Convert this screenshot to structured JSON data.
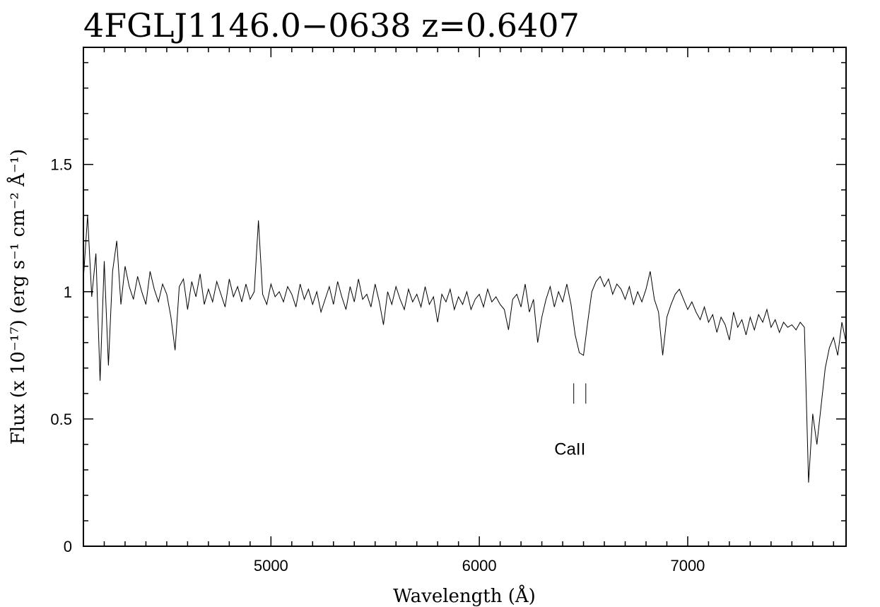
{
  "chart_data": {
    "type": "line",
    "title": "4FGLJ1146.0−0638 z=0.6407",
    "xlabel": "Wavelength (Å)",
    "ylabel": "Flux (x 10⁻¹⁷) (erg s⁻¹ cm⁻² Å⁻¹)",
    "color": "#000000",
    "xlim": [
      4100,
      7760
    ],
    "ylim": [
      0,
      1.96
    ],
    "xticks": [
      5000,
      6000,
      7000
    ],
    "yticks": [
      0,
      0.5,
      1,
      1.5
    ],
    "xminorticks": [
      4200,
      4300,
      4400,
      4500,
      4600,
      4700,
      4800,
      4900,
      5100,
      5200,
      5300,
      5400,
      5500,
      5600,
      5700,
      5800,
      5900,
      6100,
      6200,
      6300,
      6400,
      6500,
      6600,
      6700,
      6800,
      6900,
      7100,
      7200,
      7300,
      7400,
      7500,
      7600,
      7700
    ],
    "yminorticks": [
      0.1,
      0.2,
      0.3,
      0.4,
      0.6,
      0.7,
      0.8,
      0.9,
      1.1,
      1.2,
      1.3,
      1.4,
      1.6,
      1.7,
      1.8,
      1.9
    ],
    "x": [
      4100,
      4120,
      4140,
      4160,
      4180,
      4200,
      4220,
      4240,
      4260,
      4280,
      4300,
      4320,
      4340,
      4360,
      4380,
      4400,
      4420,
      4440,
      4460,
      4480,
      4500,
      4520,
      4540,
      4560,
      4580,
      4600,
      4620,
      4640,
      4660,
      4680,
      4700,
      4720,
      4740,
      4760,
      4780,
      4800,
      4820,
      4840,
      4860,
      4880,
      4900,
      4920,
      4940,
      4960,
      4980,
      5000,
      5020,
      5040,
      5060,
      5080,
      5100,
      5120,
      5140,
      5160,
      5180,
      5200,
      5220,
      5240,
      5260,
      5280,
      5300,
      5320,
      5340,
      5360,
      5380,
      5400,
      5420,
      5440,
      5460,
      5480,
      5500,
      5520,
      5540,
      5560,
      5580,
      5600,
      5620,
      5640,
      5660,
      5680,
      5700,
      5720,
      5740,
      5760,
      5780,
      5800,
      5820,
      5840,
      5860,
      5880,
      5900,
      5920,
      5940,
      5960,
      5980,
      6000,
      6020,
      6040,
      6060,
      6080,
      6100,
      6120,
      6140,
      6160,
      6180,
      6200,
      6220,
      6240,
      6260,
      6280,
      6300,
      6320,
      6340,
      6360,
      6380,
      6400,
      6420,
      6440,
      6460,
      6480,
      6500,
      6520,
      6540,
      6560,
      6580,
      6600,
      6620,
      6640,
      6660,
      6680,
      6700,
      6720,
      6740,
      6760,
      6780,
      6800,
      6820,
      6840,
      6860,
      6880,
      6900,
      6920,
      6940,
      6960,
      6980,
      7000,
      7020,
      7040,
      7060,
      7080,
      7100,
      7120,
      7140,
      7160,
      7180,
      7200,
      7220,
      7240,
      7260,
      7280,
      7300,
      7320,
      7340,
      7360,
      7380,
      7400,
      7420,
      7440,
      7460,
      7480,
      7500,
      7520,
      7540,
      7560,
      7580,
      7600,
      7620,
      7640,
      7660,
      7680,
      7700,
      7720,
      7740,
      7760
    ],
    "values": [
      1.05,
      1.3,
      0.98,
      1.15,
      0.65,
      1.12,
      0.71,
      1.08,
      1.2,
      0.95,
      1.1,
      1.02,
      0.97,
      1.06,
      1.0,
      0.95,
      1.08,
      1.01,
      0.96,
      1.03,
      0.99,
      0.9,
      0.77,
      1.02,
      1.05,
      0.93,
      1.04,
      0.98,
      1.07,
      0.95,
      1.01,
      0.96,
      1.04,
      0.99,
      0.94,
      1.05,
      0.98,
      1.02,
      0.96,
      1.03,
      0.97,
      1.0,
      1.28,
      0.99,
      0.95,
      1.03,
      0.98,
      1.0,
      0.96,
      1.02,
      0.99,
      0.94,
      1.03,
      0.97,
      1.01,
      0.95,
      1.0,
      0.92,
      0.97,
      1.02,
      0.95,
      1.04,
      0.98,
      0.93,
      1.02,
      0.96,
      1.05,
      0.97,
      0.99,
      0.94,
      1.03,
      0.96,
      0.87,
      1.0,
      0.95,
      1.02,
      0.97,
      0.93,
      1.01,
      0.96,
      0.99,
      0.94,
      1.02,
      0.95,
      0.98,
      0.88,
      0.99,
      0.96,
      1.01,
      0.93,
      0.98,
      0.95,
      1.0,
      0.93,
      0.97,
      0.99,
      0.94,
      1.01,
      0.96,
      0.98,
      0.95,
      0.93,
      0.85,
      0.97,
      0.99,
      0.94,
      1.03,
      0.92,
      0.97,
      0.8,
      0.9,
      0.97,
      1.02,
      0.94,
      1.0,
      0.96,
      1.03,
      0.95,
      0.83,
      0.76,
      0.75,
      0.88,
      1.0,
      1.04,
      1.06,
      1.02,
      1.05,
      0.99,
      1.03,
      1.01,
      0.97,
      1.02,
      0.95,
      1.0,
      0.96,
      1.01,
      1.08,
      0.97,
      0.92,
      0.75,
      0.9,
      0.95,
      0.99,
      1.01,
      0.97,
      0.93,
      0.96,
      0.92,
      0.89,
      0.94,
      0.88,
      0.91,
      0.84,
      0.9,
      0.87,
      0.81,
      0.92,
      0.86,
      0.89,
      0.83,
      0.9,
      0.85,
      0.91,
      0.88,
      0.93,
      0.86,
      0.89,
      0.84,
      0.88,
      0.86,
      0.87,
      0.85,
      0.88,
      0.86,
      0.25,
      0.52,
      0.4,
      0.55,
      0.7,
      0.78,
      0.82,
      0.75,
      0.88,
      0.8
    ],
    "annotations": [
      {
        "text": "CaII",
        "x": [
          6453,
          6511
        ],
        "y": [
          0.56,
          0.64
        ]
      }
    ]
  }
}
